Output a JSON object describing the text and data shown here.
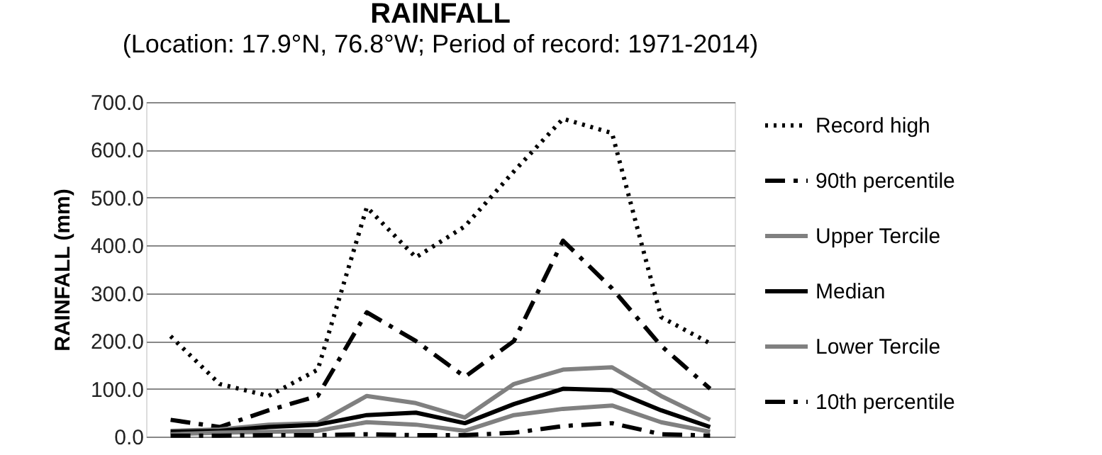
{
  "chart_data": {
    "type": "line",
    "title": "RAINFALL",
    "subtitle": "(Location: 17.9°N, 76.8°W; Period of record: 1971-2014)",
    "ylabel": "RAINFALL (mm)",
    "categories": [
      null,
      null,
      null,
      null,
      null,
      null,
      null,
      null,
      null,
      null,
      null,
      null
    ],
    "series": [
      {
        "name": "Record high",
        "color": "#000000",
        "line_style": "dotted",
        "values": [
          210,
          110,
          85,
          140,
          480,
          375,
          440,
          555,
          665,
          635,
          250,
          195
        ]
      },
      {
        "name": "90th percentile",
        "color": "#000000",
        "line_style": "dashed",
        "values": [
          35,
          20,
          55,
          85,
          260,
          200,
          125,
          200,
          410,
          310,
          190,
          100
        ]
      },
      {
        "name": "Upper Tercile",
        "color": "#808080",
        "line_style": "solid",
        "values": [
          12,
          15,
          25,
          28,
          85,
          70,
          40,
          110,
          140,
          145,
          85,
          35
        ]
      },
      {
        "name": "Median",
        "color": "#000000",
        "line_style": "solid",
        "values": [
          10,
          12,
          20,
          25,
          45,
          50,
          28,
          68,
          100,
          97,
          55,
          20
        ]
      },
      {
        "name": "Lower Tercile",
        "color": "#808080",
        "line_style": "solid",
        "values": [
          5,
          8,
          10,
          12,
          30,
          25,
          12,
          45,
          58,
          65,
          30,
          10
        ]
      },
      {
        "name": "10th percentile",
        "color": "#000000",
        "line_style": "dashed",
        "values": [
          2,
          2,
          3,
          3,
          5,
          3,
          3,
          8,
          22,
          28,
          5,
          2
        ]
      }
    ],
    "ylim": [
      0,
      700
    ],
    "yticks": [
      {
        "value": 0,
        "label": "0.0"
      },
      {
        "value": 100,
        "label": "100.0"
      },
      {
        "value": 200,
        "label": "200.0"
      },
      {
        "value": 300,
        "label": "300.0"
      },
      {
        "value": 400,
        "label": "400.0"
      },
      {
        "value": 500,
        "label": "500.0"
      },
      {
        "value": 600,
        "label": "600.0"
      },
      {
        "value": 700,
        "label": "700.0"
      }
    ],
    "grid": "y",
    "legend": "right",
    "tick_labels": "y"
  }
}
